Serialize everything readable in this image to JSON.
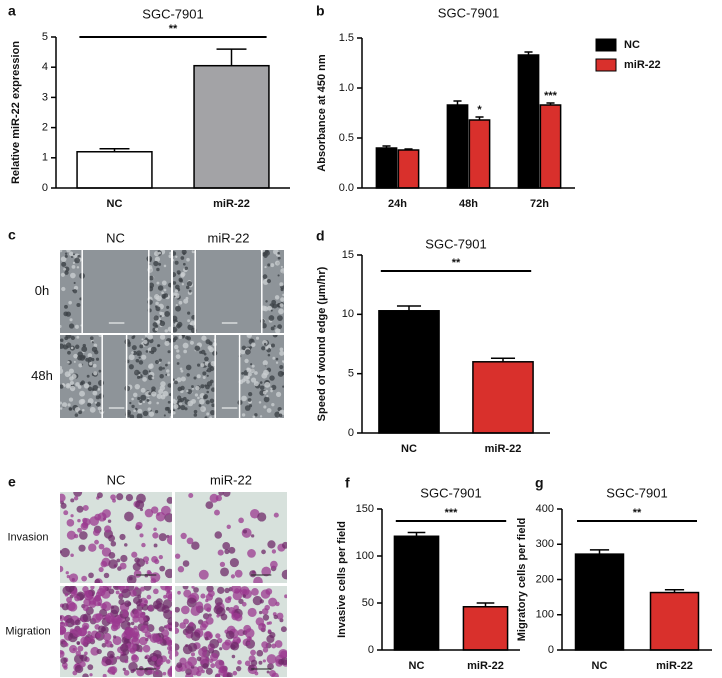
{
  "chart_data": [
    {
      "type": "bar",
      "label": "a",
      "title": "SGC-7901",
      "ylabel": "Relative miR-22 expression",
      "categories": [
        "NC",
        "miR-22"
      ],
      "values": [
        1.2,
        4.05
      ],
      "errors": [
        0.1,
        0.55
      ],
      "colors": [
        "#ffffff",
        "#a3a3a6"
      ],
      "ylim": [
        0,
        5
      ],
      "yticks": [
        0,
        1,
        2,
        3,
        4,
        5
      ],
      "significance": "**"
    },
    {
      "type": "grouped_bar",
      "label": "b",
      "title": "SGC-7901",
      "ylabel": "Absorbance at 450 nm",
      "categories": [
        "24h",
        "48h",
        "72h"
      ],
      "series": [
        {
          "name": "NC",
          "color": "#000000",
          "values": [
            0.4,
            0.83,
            1.33
          ],
          "errors": [
            0.02,
            0.04,
            0.03
          ]
        },
        {
          "name": "miR-22",
          "color": "#d9302c",
          "values": [
            0.38,
            0.68,
            0.83
          ],
          "errors": [
            0.01,
            0.03,
            0.02
          ]
        }
      ],
      "ylim": [
        0,
        1.5
      ],
      "yticks": [
        {
          "value": 0,
          "label": "0.0"
        },
        0.5,
        {
          "value": 1,
          "label": "1.0"
        },
        1.5
      ],
      "significance": [
        "*",
        "***"
      ],
      "legend": "top-right"
    },
    {
      "type": "bar",
      "label": "d",
      "title": "SGC-7901",
      "ylabel": "Speed of wound edge (μm/hr)",
      "categories": [
        "NC",
        "miR-22"
      ],
      "values": [
        10.3,
        6.0
      ],
      "errors": [
        0.4,
        0.3
      ],
      "colors": [
        "#000000",
        "#d9302c"
      ],
      "ylim": [
        0,
        15
      ],
      "yticks": [
        0,
        5,
        10,
        15
      ],
      "significance": "**"
    },
    {
      "type": "bar",
      "label": "f",
      "title": "SGC-7901",
      "ylabel": "Invasive cells per field",
      "categories": [
        "NC",
        "miR-22"
      ],
      "values": [
        121,
        46
      ],
      "errors": [
        4,
        4
      ],
      "colors": [
        "#000000",
        "#d9302c"
      ],
      "ylim": [
        0,
        150
      ],
      "yticks": [
        0,
        50,
        100,
        150
      ],
      "significance": "***"
    },
    {
      "type": "bar",
      "label": "g",
      "title": "SGC-7901",
      "ylabel": "Migratory cells per field",
      "categories": [
        "NC",
        "miR-22"
      ],
      "values": [
        272,
        163
      ],
      "errors": [
        12,
        8
      ],
      "colors": [
        "#000000",
        "#d9302c"
      ],
      "ylim": [
        0,
        400
      ],
      "yticks": [
        0,
        100,
        200,
        300,
        400
      ],
      "significance": "**"
    }
  ],
  "image_panels": [
    {
      "label": "c",
      "columns": [
        "NC",
        "miR-22"
      ],
      "rows": [
        "0h",
        "48h"
      ]
    },
    {
      "label": "e",
      "columns": [
        "NC",
        "miR-22"
      ],
      "rows": [
        "Invasion",
        "Migration"
      ]
    }
  ]
}
